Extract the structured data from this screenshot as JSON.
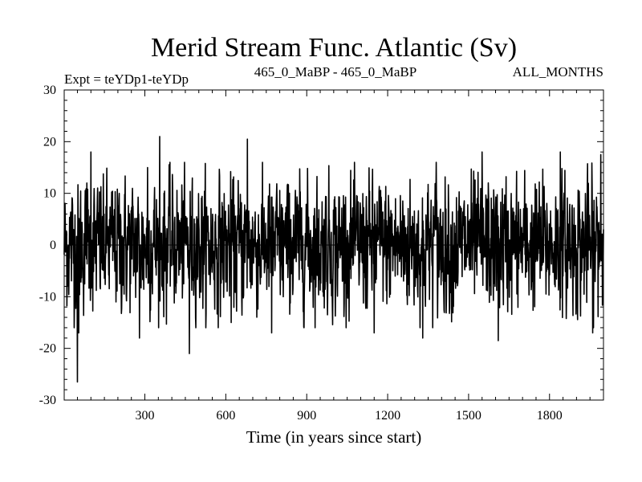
{
  "chart_data": {
    "type": "line",
    "title": "Merid Stream Func. Atlantic (Sv)",
    "subtitle_left": "Expt = teYDp1-teYDp",
    "subtitle_center": "465_0_MaBP - 465_0_MaBP",
    "subtitle_right": "ALL_MONTHS",
    "xlabel": "Time (in years since start)",
    "ylabel": "",
    "xlim": [
      1,
      2000
    ],
    "ylim": [
      -30,
      30
    ],
    "x_ticks": [
      300,
      600,
      900,
      1200,
      1500,
      1800
    ],
    "x_tick_labels": [
      "300",
      "600",
      "900",
      "1200",
      "1500",
      "1800"
    ],
    "y_ticks": [
      -30,
      -20,
      -10,
      0,
      10,
      20,
      30
    ],
    "y_tick_labels": [
      "-30",
      "-20",
      "-10",
      "0",
      "10",
      "20",
      "30"
    ],
    "zero_line": true,
    "series": [
      {
        "name": "teYDp1-teYDp",
        "color": "#000000",
        "n_points": 2000,
        "std_approx": 6,
        "notable_points": [
          {
            "x": 50,
            "y": -26.5
          },
          {
            "x": 55,
            "y": -17
          },
          {
            "x": 85,
            "y": 12
          },
          {
            "x": 100,
            "y": 18
          },
          {
            "x": 280,
            "y": -18
          },
          {
            "x": 310,
            "y": 15
          },
          {
            "x": 355,
            "y": 21
          },
          {
            "x": 465,
            "y": -21
          },
          {
            "x": 620,
            "y": -15
          },
          {
            "x": 680,
            "y": 20.5
          },
          {
            "x": 770,
            "y": -17
          },
          {
            "x": 1150,
            "y": -17
          },
          {
            "x": 1330,
            "y": -18
          },
          {
            "x": 1380,
            "y": 16
          },
          {
            "x": 1550,
            "y": 18
          },
          {
            "x": 1610,
            "y": -18.5
          },
          {
            "x": 1840,
            "y": 18
          },
          {
            "x": 1960,
            "y": -17
          },
          {
            "x": 1990,
            "y": 17.5
          }
        ]
      }
    ]
  }
}
